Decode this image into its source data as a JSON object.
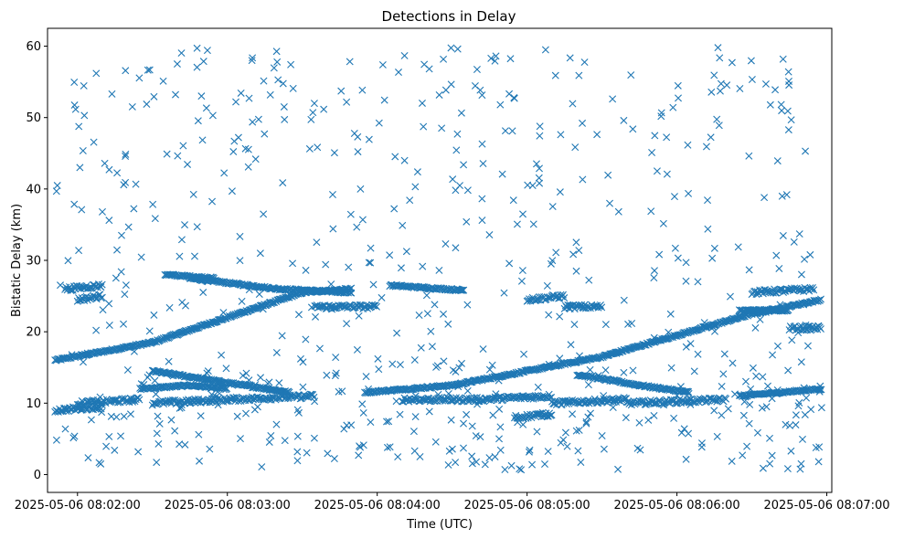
{
  "chart_data": {
    "type": "scatter",
    "title": "Detections in Delay",
    "xlabel": "Time (UTC)",
    "ylabel": "Bistatic Delay (km)",
    "marker": "x",
    "color": "#1f77b4",
    "grid": false,
    "legend": "none",
    "xlim": [
      "2025-05-06 08:01:48",
      "2025-05-06 08:07:02"
    ],
    "ylim": [
      -2.5,
      62.5
    ],
    "x_ticks": [
      "2025-05-06 08:02:00",
      "2025-05-06 08:03:00",
      "2025-05-06 08:04:00",
      "2025-05-06 08:05:00",
      "2025-05-06 08:06:00",
      "2025-05-06 08:07:00"
    ],
    "y_ticks": [
      0,
      10,
      20,
      30,
      40,
      50,
      60
    ],
    "time_range": [
      "2025-05-06 08:01:51",
      "2025-05-06 08:06:58"
    ],
    "tracks": [
      {
        "points": [
          [
            "2025-05-06 08:01:51",
            16.0
          ],
          [
            "2025-05-06 08:02:30",
            18.5
          ],
          [
            "2025-05-06 08:03:00",
            22.0
          ],
          [
            "2025-05-06 08:03:30",
            25.5
          ],
          [
            "2025-05-06 08:03:50",
            26.0
          ]
        ]
      },
      {
        "points": [
          [
            "2025-05-06 08:02:45",
            27.5
          ],
          [
            "2025-05-06 08:03:20",
            26.0
          ],
          [
            "2025-05-06 08:03:50",
            25.5
          ]
        ]
      },
      {
        "points": [
          [
            "2025-05-06 08:02:35",
            28.0
          ],
          [
            "2025-05-06 08:02:55",
            27.5
          ]
        ]
      },
      {
        "points": [
          [
            "2025-05-06 08:02:25",
            12.0
          ],
          [
            "2025-05-06 08:02:45",
            12.5
          ],
          [
            "2025-05-06 08:03:00",
            12.0
          ]
        ]
      },
      {
        "points": [
          [
            "2025-05-06 08:02:30",
            14.5
          ],
          [
            "2025-05-06 08:03:25",
            11.5
          ]
        ]
      },
      {
        "points": [
          [
            "2025-05-06 08:03:55",
            11.5
          ],
          [
            "2025-05-06 08:04:30",
            12.5
          ],
          [
            "2025-05-06 08:05:00",
            14.5
          ],
          [
            "2025-05-06 08:05:30",
            16.5
          ],
          [
            "2025-05-06 08:06:00",
            19.5
          ],
          [
            "2025-05-06 08:06:30",
            22.5
          ],
          [
            "2025-05-06 08:06:58",
            24.5
          ]
        ]
      },
      {
        "points": [
          [
            "2025-05-06 08:04:05",
            26.5
          ],
          [
            "2025-05-06 08:04:35",
            25.8
          ]
        ]
      },
      {
        "points": [
          [
            "2025-05-06 08:05:20",
            14.0
          ],
          [
            "2025-05-06 08:05:45",
            12.5
          ],
          [
            "2025-05-06 08:06:05",
            11.5
          ]
        ]
      },
      {
        "points": [
          [
            "2025-05-06 08:06:25",
            23.0
          ],
          [
            "2025-05-06 08:06:45",
            23.0
          ]
        ]
      },
      {
        "points": [
          [
            "2025-05-06 08:06:25",
            11.0
          ],
          [
            "2025-05-06 08:06:58",
            12.0
          ]
        ]
      }
    ],
    "clusters": [
      {
        "x": [
          "2025-05-06 08:01:55",
          "2025-05-06 08:02:10"
        ],
        "y": [
          26.0,
          26.5
        ]
      },
      {
        "x": [
          "2025-05-06 08:02:00",
          "2025-05-06 08:02:10"
        ],
        "y": [
          24.5,
          25.0
        ]
      },
      {
        "x": [
          "2025-05-06 08:02:00",
          "2025-05-06 08:02:25"
        ],
        "y": [
          10.0,
          10.5
        ]
      },
      {
        "x": [
          "2025-05-06 08:01:51",
          "2025-05-06 08:02:10"
        ],
        "y": [
          9.0,
          9.5
        ]
      },
      {
        "x": [
          "2025-05-06 08:02:30",
          "2025-05-06 08:03:00"
        ],
        "y": [
          10.0,
          10.5
        ]
      },
      {
        "x": [
          "2025-05-06 08:03:00",
          "2025-05-06 08:03:35"
        ],
        "y": [
          10.5,
          11.0
        ]
      },
      {
        "x": [
          "2025-05-06 08:03:35",
          "2025-05-06 08:04:00"
        ],
        "y": [
          23.5,
          23.5
        ]
      },
      {
        "x": [
          "2025-05-06 08:04:10",
          "2025-05-06 08:04:40"
        ],
        "y": [
          10.5,
          10.5
        ]
      },
      {
        "x": [
          "2025-05-06 08:04:40",
          "2025-05-06 08:05:10"
        ],
        "y": [
          10.5,
          11.0
        ]
      },
      {
        "x": [
          "2025-05-06 08:05:00",
          "2025-05-06 08:05:15"
        ],
        "y": [
          24.5,
          25.0
        ]
      },
      {
        "x": [
          "2025-05-06 08:05:10",
          "2025-05-06 08:05:40"
        ],
        "y": [
          10.0,
          10.5
        ]
      },
      {
        "x": [
          "2025-05-06 08:05:40",
          "2025-05-06 08:06:20"
        ],
        "y": [
          10.0,
          10.5
        ]
      },
      {
        "x": [
          "2025-05-06 08:05:15",
          "2025-05-06 08:05:30"
        ],
        "y": [
          23.5,
          23.5
        ]
      },
      {
        "x": [
          "2025-05-06 08:04:55",
          "2025-05-06 08:05:10"
        ],
        "y": [
          8.0,
          8.5
        ]
      },
      {
        "x": [
          "2025-05-06 08:06:30",
          "2025-05-06 08:06:55"
        ],
        "y": [
          25.5,
          26.0
        ]
      },
      {
        "x": [
          "2025-05-06 08:06:45",
          "2025-05-06 08:06:58"
        ],
        "y": [
          20.5,
          20.5
        ]
      }
    ],
    "noise": {
      "count": 520,
      "y_range": [
        0.5,
        60
      ],
      "low_band_extra": 160,
      "low_band_range": [
        1,
        15
      ]
    }
  }
}
